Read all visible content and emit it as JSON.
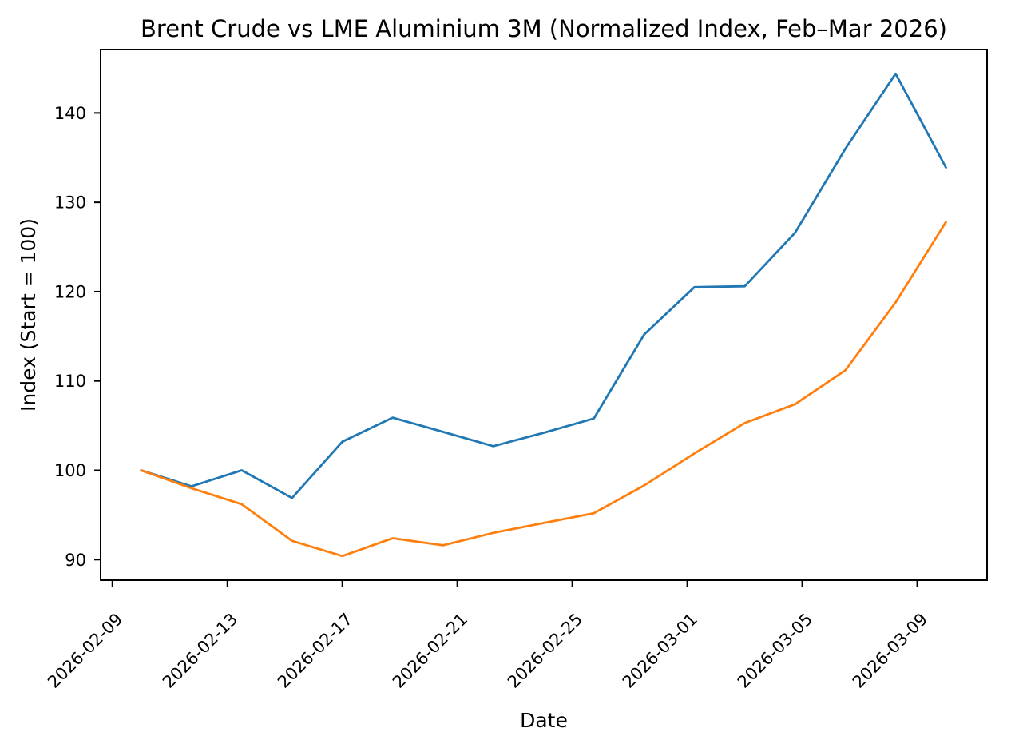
{
  "figure": {
    "background": "#ffffff",
    "text_color": "#000000",
    "spine_color": "#000000"
  },
  "chart_data": {
    "type": "line",
    "title": "Brent Crude vs LME Aluminium 3M (Normalized Index, Feb–Mar 2026)",
    "xlabel": "Date",
    "ylabel": "Index (Start = 100)",
    "grid": false,
    "legend_shown": false,
    "x_axis": {
      "unit": "days after 2026-02-09",
      "lim": [
        -0.41,
        30.43
      ],
      "tick_rotation_deg": 45,
      "ticks": [
        {
          "offset": 0,
          "label": "2026-02-09"
        },
        {
          "offset": 4,
          "label": "2026-02-13"
        },
        {
          "offset": 8,
          "label": "2026-02-17"
        },
        {
          "offset": 12,
          "label": "2026-02-21"
        },
        {
          "offset": 16,
          "label": "2026-02-25"
        },
        {
          "offset": 20,
          "label": "2026-03-01"
        },
        {
          "offset": 24,
          "label": "2026-03-05"
        },
        {
          "offset": 28,
          "label": "2026-03-09"
        }
      ]
    },
    "y_axis": {
      "lim": [
        87.7,
        147.1
      ],
      "ticks": [
        90,
        100,
        110,
        120,
        130,
        140
      ]
    },
    "x_offsets_days": [
      1,
      2.75,
      4.5,
      6.25,
      8,
      9.75,
      11.5,
      13.25,
      15,
      16.75,
      18.5,
      20.25,
      22,
      23.75,
      25.5,
      27.25,
      29
    ],
    "series": [
      {
        "name": "Brent Crude (normalized, blue)",
        "color": "#1f77b4",
        "values": [
          100.0,
          98.2,
          100.0,
          96.9,
          103.2,
          105.9,
          104.3,
          102.7,
          104.2,
          105.8,
          115.2,
          120.5,
          120.6,
          126.6,
          136.0,
          144.4,
          133.9
        ]
      },
      {
        "name": "LME Aluminium 3M (normalized, orange)",
        "color": "#ff7f0e",
        "values": [
          100.0,
          98.0,
          96.2,
          92.1,
          90.4,
          92.4,
          91.6,
          93.0,
          94.1,
          95.2,
          98.3,
          101.9,
          105.3,
          107.4,
          111.2,
          118.8,
          127.8
        ]
      }
    ]
  }
}
